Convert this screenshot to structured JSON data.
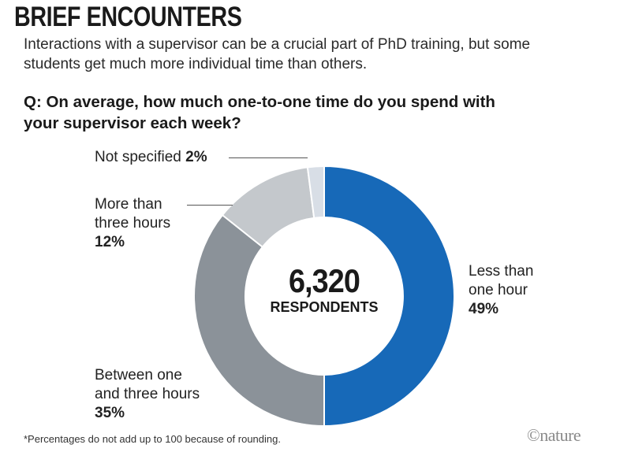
{
  "header": {
    "title": "BRIEF ENCOUNTERS",
    "subtitle": "Interactions with a supervisor can be a crucial part of PhD training, but some students get much more individual time than others.",
    "question": "Q: On average, how much one-to-one time do you spend with your supervisor each week?"
  },
  "chart_data": {
    "type": "pie",
    "variant": "donut",
    "title": "BRIEF ENCOUNTERS",
    "center_value": "6,320",
    "center_label": "RESPONDENTS",
    "slices": [
      {
        "label": "Less than one hour",
        "label_lines": [
          "Less than",
          "one hour"
        ],
        "value": 49,
        "display": "49%",
        "color": "#1769b8"
      },
      {
        "label": "Between one and three hours",
        "label_lines": [
          "Between one",
          "and three hours"
        ],
        "value": 35,
        "display": "35%",
        "color": "#8b9299"
      },
      {
        "label": "More than three hours",
        "label_lines": [
          "More than",
          "three hours"
        ],
        "value": 12,
        "display": "12%",
        "color": "#c4c8cc"
      },
      {
        "label": "Not specified",
        "label_lines": [
          "Not specified"
        ],
        "value": 2,
        "display": "2%",
        "color": "#d8dee6"
      }
    ]
  },
  "footer": {
    "footnote": "*Percentages do not add up to 100 because of rounding.",
    "logo": "©nature"
  }
}
